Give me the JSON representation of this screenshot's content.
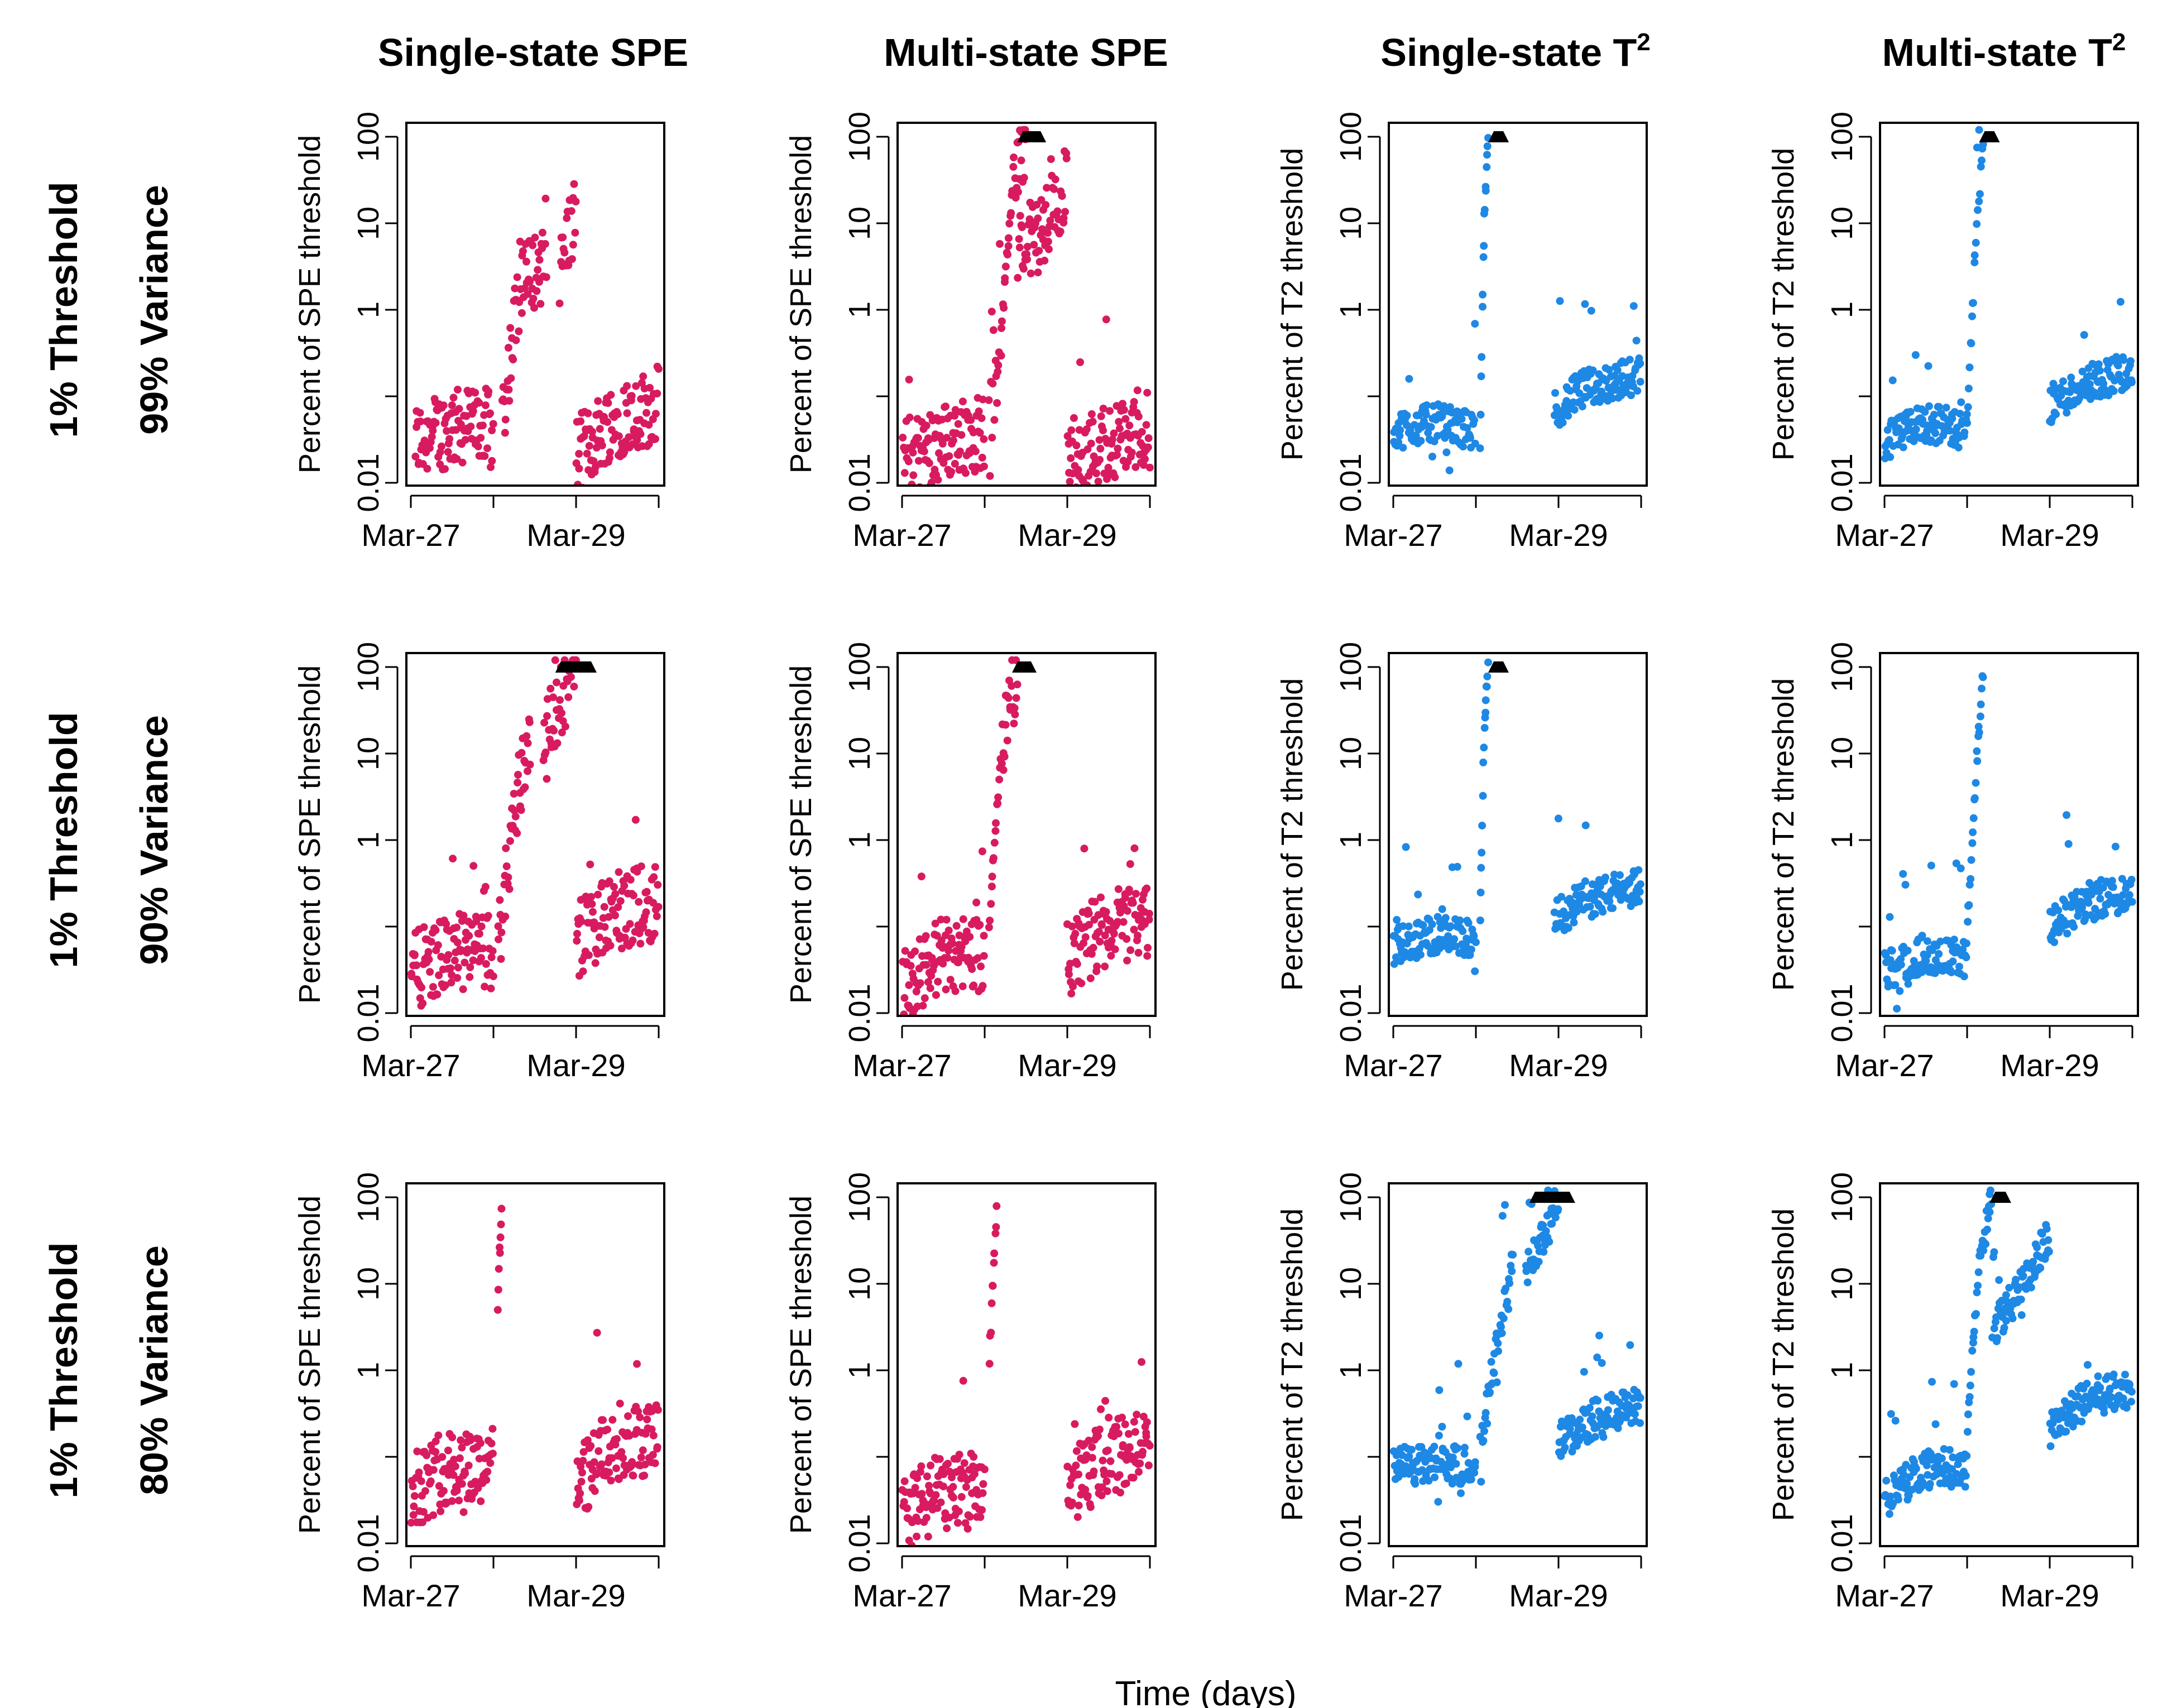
{
  "x_axis_title": "Time (days)",
  "colors": {
    "spe": "#d81b60",
    "t2": "#1e88e5",
    "marker": "#000000"
  },
  "column_titles": [
    {
      "main": "Single-state SPE",
      "sup": ""
    },
    {
      "main": "Multi-state SPE",
      "sup": ""
    },
    {
      "main": "Single-state T",
      "sup": "2"
    },
    {
      "main": "Multi-state T",
      "sup": "2"
    }
  ],
  "row_labels": [
    {
      "threshold": "1% Threshold",
      "variance": "99% Variance"
    },
    {
      "threshold": "1% Threshold",
      "variance": "90% Variance"
    },
    {
      "threshold": "1% Threshold",
      "variance": "80% Variance"
    }
  ],
  "ylabels": [
    "Percent of SPE threshold",
    "Percent of SPE threshold",
    "Percent of T2 threshold",
    "Percent of T2 threshold"
  ],
  "y_ticks": [
    "0.01",
    "1",
    "10",
    "100"
  ],
  "x_ticks": [
    "Mar-27",
    "Mar-29"
  ],
  "chart_data": [
    {
      "type": "scatter",
      "row": 0,
      "col": 0,
      "stat": "SPE",
      "y_scale": "log",
      "ylim": [
        0.01,
        100
      ],
      "xlim": [
        "Mar-27",
        "Mar-30"
      ],
      "series": [
        {
          "x": [
            0.05,
            0.4,
            0.8,
            1.0
          ],
          "y": [
            0.03,
            0.04,
            0.05,
            0.04
          ]
        },
        {
          "x": [
            1.1,
            1.3,
            1.5,
            1.65
          ],
          "y": [
            0.05,
            1.5,
            3.0,
            3.2
          ]
        },
        {
          "x": [
            1.8,
            1.9,
            2.0
          ],
          "y": [
            2.5,
            7.0,
            15.0
          ]
        },
        {
          "x": [
            2.0,
            2.4,
            3.0
          ],
          "y": [
            0.02,
            0.05,
            0.08
          ]
        }
      ]
    },
    {
      "type": "scatter",
      "row": 0,
      "col": 1,
      "stat": "SPE",
      "y_scale": "log",
      "ylim": [
        0.01,
        100
      ],
      "xlim": [
        "Mar-27",
        "Mar-30"
      ],
      "series": [
        {
          "x": [
            0.0,
            0.5,
            1.0
          ],
          "y": [
            0.02,
            0.03,
            0.04
          ]
        },
        {
          "x": [
            1.05,
            1.2,
            1.35,
            1.5
          ],
          "y": [
            0.05,
            0.5,
            40,
            100
          ]
        },
        {
          "x": [
            1.4,
            1.7,
            2.0
          ],
          "y": [
            5,
            8,
            30
          ]
        },
        {
          "x": [
            2.0,
            2.5,
            3.0
          ],
          "y": [
            0.02,
            0.03,
            0.04
          ]
        }
      ]
    },
    {
      "type": "scatter",
      "row": 0,
      "col": 2,
      "stat": "T2",
      "y_scale": "log",
      "ylim": [
        0.01,
        100
      ],
      "xlim": [
        "Mar-27",
        "Mar-30"
      ],
      "series": [
        {
          "x": [
            0.0,
            0.5,
            1.0
          ],
          "y": [
            0.04,
            0.05,
            0.04
          ]
        },
        {
          "x": [
            1.05,
            1.1,
            1.15
          ],
          "y": [
            0.03,
            10,
            100
          ]
        },
        {
          "x": [
            1.95,
            2.3,
            3.0
          ],
          "y": [
            0.07,
            0.12,
            0.18
          ]
        }
      ]
    },
    {
      "type": "scatter",
      "row": 0,
      "col": 3,
      "stat": "T2",
      "y_scale": "log",
      "ylim": [
        0.01,
        100
      ],
      "xlim": [
        "Mar-27",
        "Mar-30"
      ],
      "series": [
        {
          "x": [
            0.0,
            0.5,
            1.0
          ],
          "y": [
            0.03,
            0.05,
            0.04
          ]
        },
        {
          "x": [
            1.0,
            1.1,
            1.2
          ],
          "y": [
            0.05,
            5,
            100
          ]
        },
        {
          "x": [
            2.0,
            2.5,
            3.0
          ],
          "y": [
            0.08,
            0.15,
            0.2
          ]
        }
      ]
    },
    {
      "type": "scatter",
      "row": 1,
      "col": 0,
      "stat": "SPE",
      "y_scale": "log",
      "ylim": [
        0.01,
        100
      ],
      "xlim": [
        "Mar-27",
        "Mar-30"
      ],
      "series": [
        {
          "x": [
            0.0,
            0.5,
            1.0
          ],
          "y": [
            0.03,
            0.05,
            0.05
          ]
        },
        {
          "x": [
            1.05,
            1.25,
            1.45
          ],
          "y": [
            0.05,
            2,
            20
          ]
        },
        {
          "x": [
            1.6,
            1.8,
            2.0
          ],
          "y": [
            15,
            40,
            100
          ]
        },
        {
          "x": [
            2.0,
            2.5,
            3.0
          ],
          "y": [
            0.07,
            0.15,
            0.2
          ]
        }
      ]
    },
    {
      "type": "scatter",
      "row": 1,
      "col": 1,
      "stat": "SPE",
      "y_scale": "log",
      "ylim": [
        0.01,
        100
      ],
      "xlim": [
        "Mar-27",
        "Mar-30"
      ],
      "series": [
        {
          "x": [
            0.0,
            0.5,
            1.0
          ],
          "y": [
            0.02,
            0.05,
            0.05
          ]
        },
        {
          "x": [
            1.05,
            1.2,
            1.4
          ],
          "y": [
            0.1,
            10,
            100
          ]
        },
        {
          "x": [
            2.0,
            2.5,
            3.0
          ],
          "y": [
            0.04,
            0.1,
            0.12
          ]
        }
      ]
    },
    {
      "type": "scatter",
      "row": 1,
      "col": 2,
      "stat": "T2",
      "y_scale": "log",
      "ylim": [
        0.01,
        100
      ],
      "xlim": [
        "Mar-27",
        "Mar-30"
      ],
      "series": [
        {
          "x": [
            0.0,
            0.5,
            1.0
          ],
          "y": [
            0.06,
            0.08,
            0.07
          ]
        },
        {
          "x": [
            1.05,
            1.1,
            1.15
          ],
          "y": [
            0.1,
            20,
            100
          ]
        },
        {
          "x": [
            1.95,
            2.3,
            3.0
          ],
          "y": [
            0.12,
            0.2,
            0.3
          ]
        }
      ]
    },
    {
      "type": "scatter",
      "row": 1,
      "col": 3,
      "stat": "T2",
      "y_scale": "log",
      "ylim": [
        0.01,
        100
      ],
      "xlim": [
        "Mar-27",
        "Mar-30"
      ],
      "series": [
        {
          "x": [
            0.0,
            0.5,
            1.0
          ],
          "y": [
            0.03,
            0.05,
            0.04
          ]
        },
        {
          "x": [
            1.0,
            1.1,
            1.2
          ],
          "y": [
            0.08,
            5,
            100
          ]
        },
        {
          "x": [
            2.0,
            2.5,
            3.0
          ],
          "y": [
            0.1,
            0.2,
            0.25
          ]
        }
      ]
    },
    {
      "type": "scatter",
      "row": 2,
      "col": 0,
      "stat": "SPE",
      "y_scale": "log",
      "ylim": [
        0.01,
        100
      ],
      "xlim": [
        "Mar-27",
        "Mar-30"
      ],
      "series": [
        {
          "x": [
            0.0,
            0.5,
            1.0
          ],
          "y": [
            0.04,
            0.08,
            0.08
          ]
        },
        {
          "x": [
            1.05,
            1.1
          ],
          "y": [
            5,
            100
          ]
        },
        {
          "x": [
            2.0,
            2.5,
            3.0
          ],
          "y": [
            0.05,
            0.15,
            0.15
          ]
        }
      ]
    },
    {
      "type": "scatter",
      "row": 2,
      "col": 1,
      "stat": "SPE",
      "y_scale": "log",
      "ylim": [
        0.01,
        100
      ],
      "xlim": [
        "Mar-27",
        "Mar-30"
      ],
      "series": [
        {
          "x": [
            0.0,
            0.5,
            1.0
          ],
          "y": [
            0.02,
            0.04,
            0.04
          ]
        },
        {
          "x": [
            1.05,
            1.15
          ],
          "y": [
            1,
            100
          ]
        },
        {
          "x": [
            2.0,
            2.5,
            3.0
          ],
          "y": [
            0.04,
            0.1,
            0.12
          ]
        }
      ]
    },
    {
      "type": "scatter",
      "row": 2,
      "col": 2,
      "stat": "T2",
      "y_scale": "log",
      "ylim": [
        0.01,
        100
      ],
      "xlim": [
        "Mar-27",
        "Mar-30"
      ],
      "series": [
        {
          "x": [
            0.0,
            0.5,
            1.0
          ],
          "y": [
            0.08,
            0.08,
            0.08
          ]
        },
        {
          "x": [
            1.05,
            1.25,
            1.45
          ],
          "y": [
            0.1,
            2,
            20
          ]
        },
        {
          "x": [
            1.6,
            1.8,
            2.0
          ],
          "y": [
            15,
            30,
            100
          ]
        },
        {
          "x": [
            2.0,
            2.5,
            3.0
          ],
          "y": [
            0.15,
            0.3,
            0.4
          ]
        }
      ]
    },
    {
      "type": "scatter",
      "row": 2,
      "col": 3,
      "stat": "T2",
      "y_scale": "log",
      "ylim": [
        0.01,
        100
      ],
      "xlim": [
        "Mar-27",
        "Mar-30"
      ],
      "series": [
        {
          "x": [
            0.0,
            0.5,
            1.0
          ],
          "y": [
            0.03,
            0.08,
            0.07
          ]
        },
        {
          "x": [
            1.0,
            1.15,
            1.3
          ],
          "y": [
            0.2,
            20,
            100
          ]
        },
        {
          "x": [
            1.3,
            1.7,
            2.0
          ],
          "y": [
            3,
            10,
            40
          ]
        },
        {
          "x": [
            2.0,
            2.5,
            3.0
          ],
          "y": [
            0.2,
            0.5,
            0.6
          ]
        }
      ]
    }
  ]
}
